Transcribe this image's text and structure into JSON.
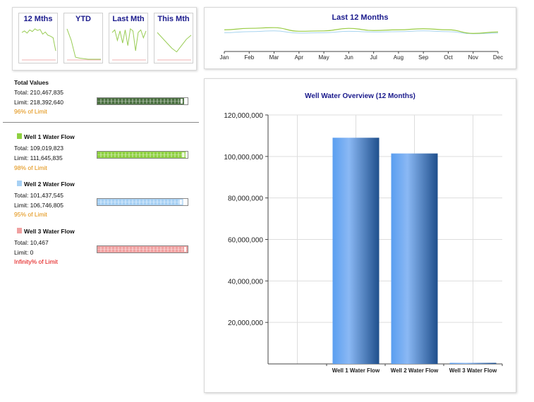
{
  "sparklines": [
    {
      "label": "12 Mths",
      "values": [
        55,
        58,
        54,
        60,
        57,
        62,
        59,
        61,
        52,
        56,
        50,
        48,
        45,
        20
      ]
    },
    {
      "label": "YTD",
      "values": [
        62,
        40,
        8,
        6,
        5,
        4,
        4,
        4,
        4
      ]
    },
    {
      "label": "Last Mth",
      "values": [
        55,
        60,
        40,
        58,
        35,
        60,
        30,
        62,
        58,
        20,
        55,
        60,
        45,
        58
      ]
    },
    {
      "label": "This Mth",
      "values": [
        55,
        45,
        35,
        25,
        18,
        30,
        42,
        50
      ]
    }
  ],
  "last12": {
    "title": "Last 12 Months",
    "months": [
      "Jan",
      "Feb",
      "Mar",
      "Apr",
      "May",
      "Jun",
      "Jul",
      "Aug",
      "Sep",
      "Oct",
      "Nov",
      "Dec"
    ],
    "series_a": [
      52,
      56,
      58,
      48,
      49,
      56,
      50,
      52,
      55,
      52,
      42,
      46
    ],
    "series_b": [
      44,
      47,
      49,
      43,
      44,
      48,
      46,
      47,
      49,
      47,
      41,
      43
    ],
    "color_a": "#99cc44",
    "color_b": "#a8d4f0"
  },
  "totals": {
    "header": "Total Values",
    "total": "Total: 210,467,835",
    "limit": "Limit: 218,392,640",
    "pct": "96% of Limit",
    "pct_value": 0.96,
    "color": "#4a7040"
  },
  "wells": [
    {
      "name": "Well 1 Water Flow",
      "total": "Total: 109,019,823",
      "limit": "Limit: 111,645,835",
      "pct": "98% of Limit",
      "pct_value": 0.98,
      "color": "#8ed040",
      "pct_red": false
    },
    {
      "name": "Well 2 Water Flow",
      "total": "Total: 101,437,545",
      "limit": "Limit: 106,746,805",
      "pct": "95% of Limit",
      "pct_value": 0.95,
      "color": "#a6d0f4",
      "pct_red": false
    },
    {
      "name": "Well 3 Water Flow",
      "total": "Total: 10,467",
      "limit": "Limit: 0",
      "pct": "Infinity% of Limit",
      "pct_value": 1.0,
      "color": "#f0a0a0",
      "pct_red": true
    }
  ],
  "chart_data": {
    "type": "bar",
    "title": "Well Water Overview (12 Months)",
    "categories": [
      "Well 1 Water Flow",
      "Well 2 Water Flow",
      "Well 3 Water Flow"
    ],
    "values": [
      109019823,
      101437545,
      10467
    ],
    "ylim": [
      0,
      120000000
    ],
    "yticks": [
      20000000,
      40000000,
      60000000,
      80000000,
      100000000,
      120000000
    ],
    "ytick_labels": [
      "20,000,000",
      "40,000,000",
      "60,000,000",
      "80,000,000",
      "100,000,000",
      "120,000,000"
    ],
    "grid": true,
    "xlabel": "",
    "ylabel": ""
  }
}
